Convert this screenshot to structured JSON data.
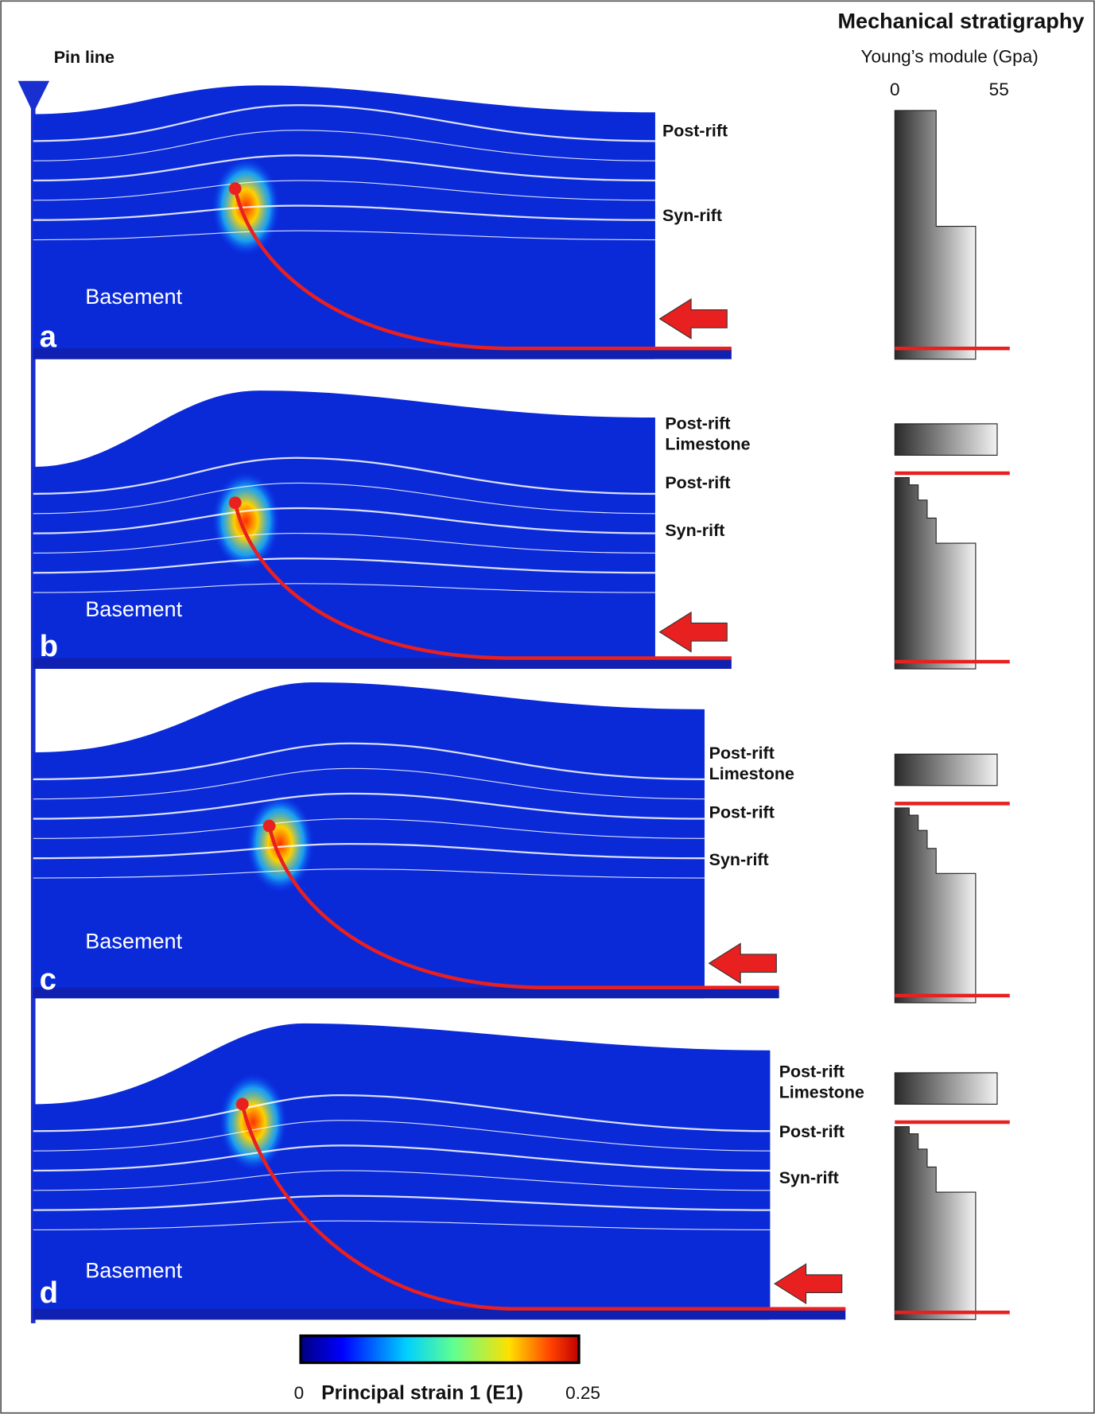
{
  "header": {
    "title": "Mechanical stratigraphy",
    "subtitle": "Young’s module (Gpa)",
    "scale": [
      0,
      55
    ]
  },
  "pin_line": "Pin line",
  "panels": [
    {
      "label": "a",
      "layers": [
        [
          "Post-rift"
        ],
        [
          "Syn-rift"
        ]
      ],
      "basement": "Basement"
    },
    {
      "label": "b",
      "layers": [
        [
          "Post-rift",
          "Limestone"
        ],
        [
          "Post-rift"
        ],
        [
          "Syn-rift"
        ]
      ],
      "basement": "Basement"
    },
    {
      "label": "c",
      "layers": [
        [
          "Post-rift",
          "Limestone"
        ],
        [
          "Post-rift"
        ],
        [
          "Syn-rift"
        ]
      ],
      "basement": "Basement"
    },
    {
      "label": "d",
      "layers": [
        [
          "Post-rift",
          "Limestone"
        ],
        [
          "Post-rift"
        ],
        [
          "Syn-rift"
        ]
      ],
      "basement": "Basement"
    }
  ],
  "colorbar": {
    "min": 0,
    "max": 0.25,
    "label": "Principal strain 1 (E1)"
  }
}
